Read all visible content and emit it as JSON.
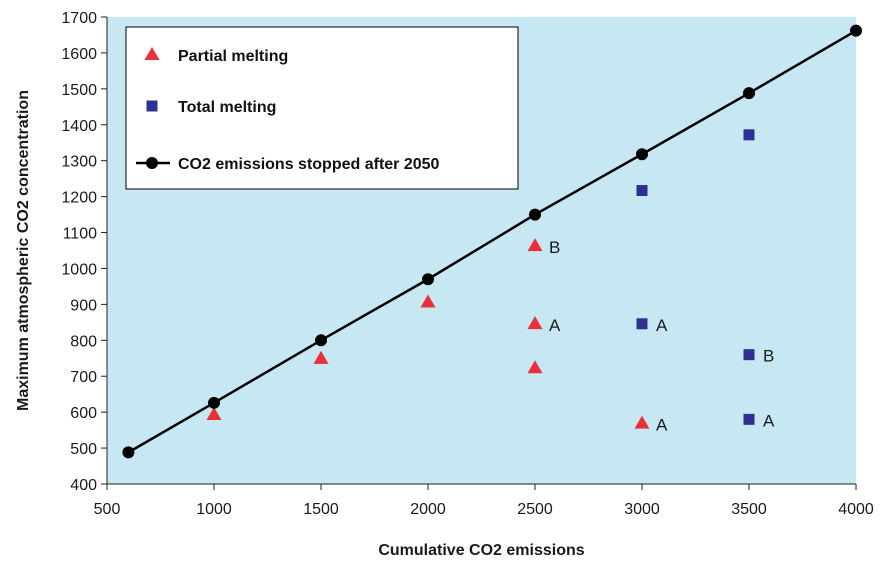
{
  "chart_data": {
    "type": "scatter",
    "title": "",
    "xlabel": "Cumulative CO2 emissions",
    "ylabel": "Maximum atmospheric CO2 concentration",
    "xlim": [
      500,
      4000
    ],
    "ylim": [
      400,
      1700
    ],
    "xticks": [
      500,
      1000,
      1500,
      2000,
      2500,
      3000,
      3500,
      4000
    ],
    "yticks": [
      400,
      500,
      600,
      700,
      800,
      900,
      1000,
      1100,
      1200,
      1300,
      1400,
      1500,
      1600,
      1700
    ],
    "plot_background": "#c7e8f2",
    "legend_position": "top-left",
    "series": [
      {
        "name": "Partial melting",
        "marker": "triangle",
        "color": "#e8303a",
        "points": [
          {
            "x": 1000,
            "y": 592,
            "label": ""
          },
          {
            "x": 1500,
            "y": 748,
            "label": ""
          },
          {
            "x": 2000,
            "y": 905,
            "label": ""
          },
          {
            "x": 2500,
            "y": 1062,
            "label": "B"
          },
          {
            "x": 2500,
            "y": 845,
            "label": "A"
          },
          {
            "x": 2500,
            "y": 722,
            "label": ""
          },
          {
            "x": 3000,
            "y": 568,
            "label": "A"
          }
        ]
      },
      {
        "name": "Total melting",
        "marker": "square",
        "color": "#2e3192",
        "points": [
          {
            "x": 3000,
            "y": 1217,
            "label": ""
          },
          {
            "x": 3500,
            "y": 1372,
            "label": ""
          },
          {
            "x": 3000,
            "y": 846,
            "label": "A"
          },
          {
            "x": 3500,
            "y": 760,
            "label": "B"
          },
          {
            "x": 3500,
            "y": 580,
            "label": "A"
          }
        ]
      },
      {
        "name": "CO2 emissions stopped after 2050",
        "marker": "circle",
        "line": true,
        "color": "#000000",
        "points": [
          {
            "x": 600,
            "y": 488
          },
          {
            "x": 1000,
            "y": 626
          },
          {
            "x": 1500,
            "y": 800
          },
          {
            "x": 2000,
            "y": 970
          },
          {
            "x": 2500,
            "y": 1150
          },
          {
            "x": 3000,
            "y": 1318
          },
          {
            "x": 3500,
            "y": 1488
          },
          {
            "x": 4000,
            "y": 1662
          }
        ]
      }
    ]
  }
}
